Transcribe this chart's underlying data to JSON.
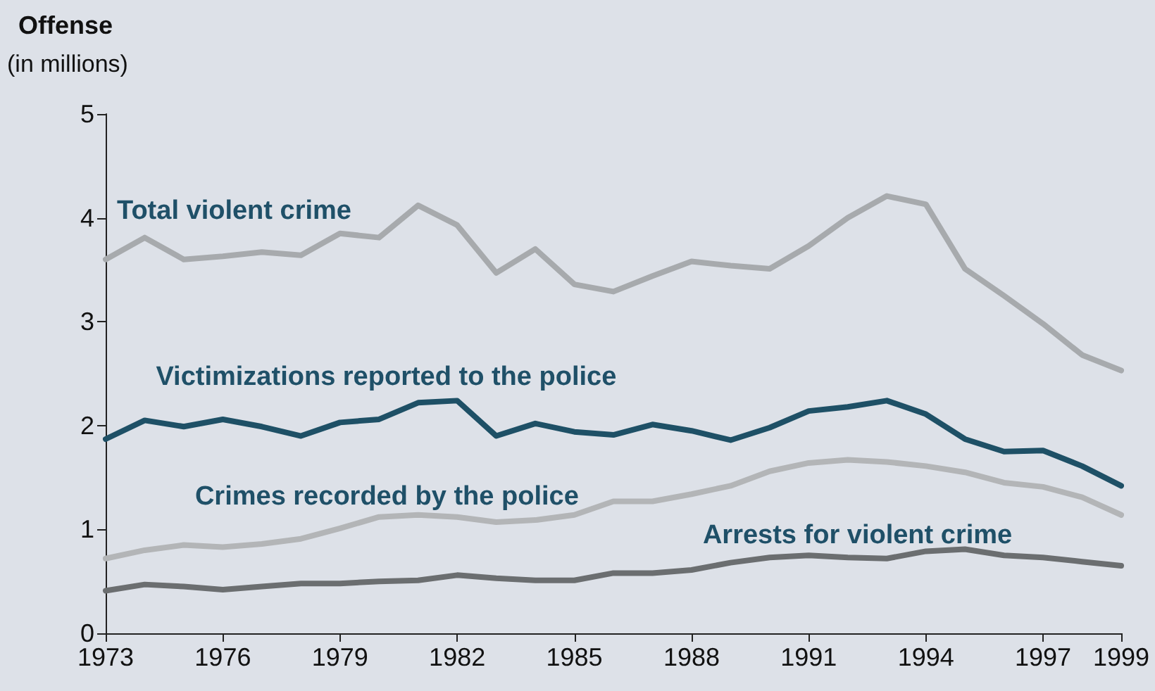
{
  "chart_data": {
    "type": "line",
    "title": "Offense",
    "subtitle": "(in millions)",
    "x": [
      1973,
      1974,
      1975,
      1976,
      1977,
      1978,
      1979,
      1980,
      1981,
      1982,
      1983,
      1984,
      1985,
      1986,
      1987,
      1988,
      1989,
      1990,
      1991,
      1992,
      1993,
      1994,
      1995,
      1996,
      1997,
      1998,
      1999
    ],
    "xlim": [
      1973,
      1999
    ],
    "xticks": [
      1973,
      1976,
      1979,
      1982,
      1985,
      1988,
      1991,
      1994,
      1997,
      1999
    ],
    "ylim": [
      0,
      5
    ],
    "yticks": [
      0,
      1,
      2,
      3,
      4,
      5
    ],
    "legend": false,
    "marker": "none",
    "line_style": "solid",
    "series": [
      {
        "name": "Total violent crime",
        "color": "#a7aaad",
        "values": [
          3.6,
          3.81,
          3.6,
          3.63,
          3.67,
          3.64,
          3.85,
          3.81,
          4.12,
          3.93,
          3.47,
          3.7,
          3.36,
          3.29,
          3.44,
          3.58,
          3.54,
          3.51,
          3.73,
          4.0,
          4.21,
          4.13,
          3.51,
          3.25,
          2.98,
          2.68,
          2.53
        ]
      },
      {
        "name": "Victimizations reported to the police",
        "color": "#1e5066",
        "values": [
          1.87,
          2.05,
          1.99,
          2.06,
          1.99,
          1.9,
          2.03,
          2.06,
          2.22,
          2.24,
          1.9,
          2.02,
          1.94,
          1.91,
          2.01,
          1.95,
          1.86,
          1.98,
          2.14,
          2.18,
          2.24,
          2.11,
          1.87,
          1.75,
          1.76,
          1.61,
          1.42
        ]
      },
      {
        "name": "Crimes recorded by the police",
        "color": "#b3b5b7",
        "values": [
          0.72,
          0.8,
          0.85,
          0.83,
          0.86,
          0.91,
          1.01,
          1.12,
          1.14,
          1.12,
          1.07,
          1.09,
          1.14,
          1.27,
          1.27,
          1.34,
          1.42,
          1.56,
          1.64,
          1.67,
          1.65,
          1.61,
          1.55,
          1.45,
          1.41,
          1.31,
          1.14
        ]
      },
      {
        "name": "Arrests for violent crime",
        "color": "#6b6e70",
        "values": [
          0.41,
          0.47,
          0.45,
          0.42,
          0.45,
          0.48,
          0.48,
          0.5,
          0.51,
          0.56,
          0.53,
          0.51,
          0.51,
          0.58,
          0.58,
          0.61,
          0.68,
          0.73,
          0.75,
          0.73,
          0.72,
          0.79,
          0.81,
          0.75,
          0.73,
          0.69,
          0.65
        ]
      }
    ]
  }
}
